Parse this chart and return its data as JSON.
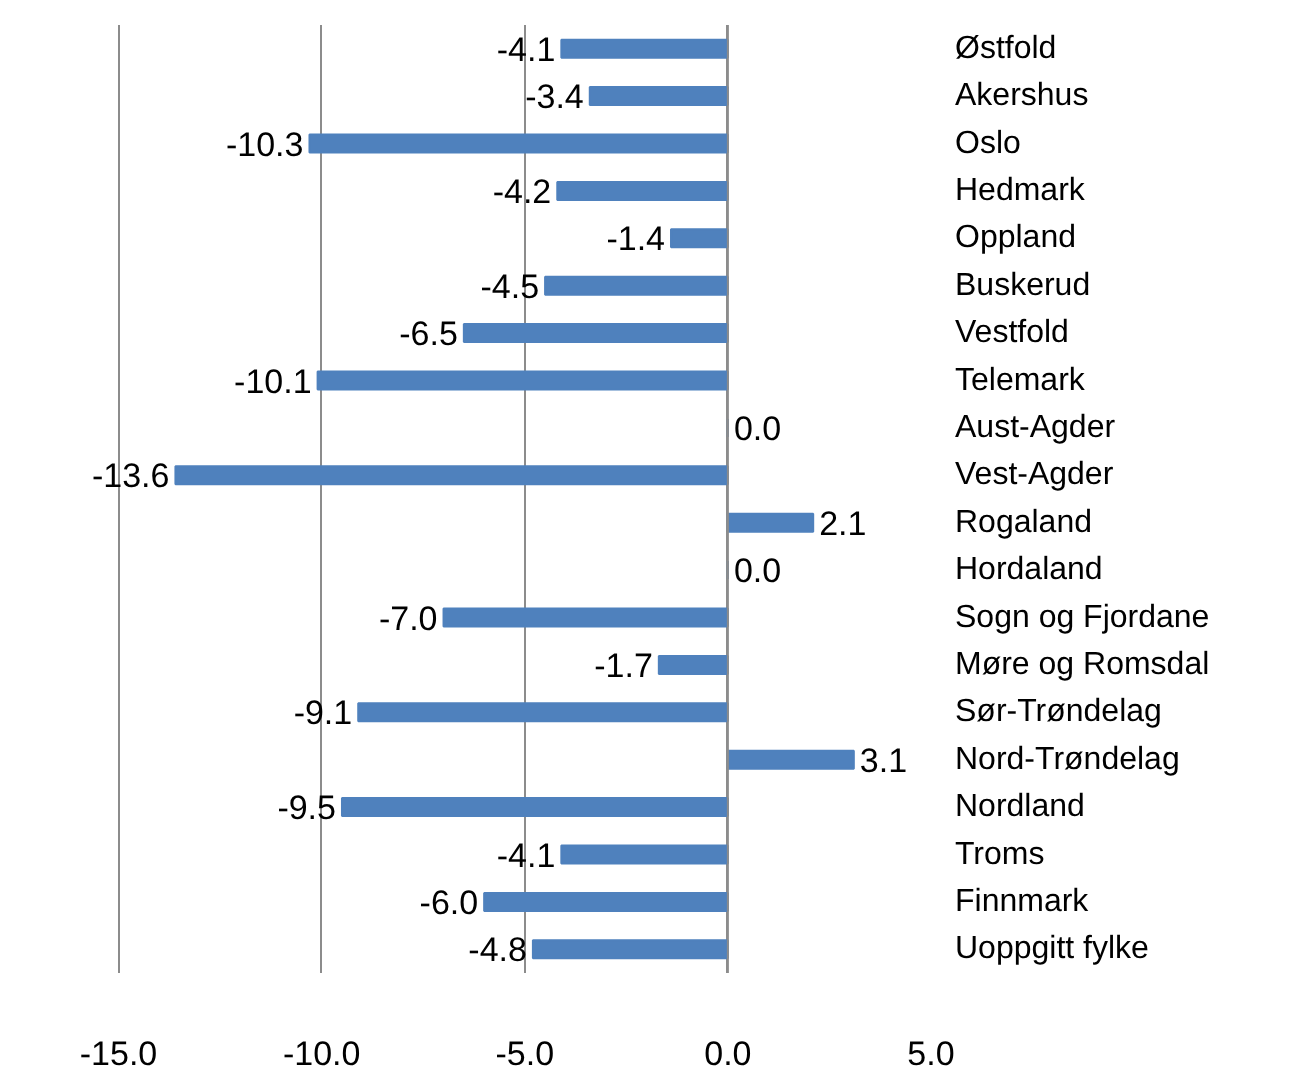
{
  "chart_data": {
    "type": "bar",
    "orientation": "horizontal",
    "categories": [
      "Østfold",
      "Akershus",
      "Oslo",
      "Hedmark",
      "Oppland",
      "Buskerud",
      "Vestfold",
      "Telemark",
      "Aust-Agder",
      "Vest-Agder",
      "Rogaland",
      "Hordaland",
      "Sogn og Fjordane",
      "Møre og Romsdal",
      "Sør-Trøndelag",
      "Nord-Trøndelag",
      "Nordland",
      "Troms",
      "Finnmark",
      "Uoppgitt fylke"
    ],
    "values": [
      -4.1,
      -3.4,
      -10.3,
      -4.2,
      -1.4,
      -4.5,
      -6.5,
      -10.1,
      0.0,
      -13.6,
      2.1,
      0.0,
      -7.0,
      -1.7,
      -9.1,
      3.1,
      -9.5,
      -4.1,
      -6.0,
      -4.8
    ],
    "value_labels": [
      "-4.1",
      "-3.4",
      "-10.3",
      "-4.2",
      "-1.4",
      "-4.5",
      "-6.5",
      "-10.1",
      "0.0",
      "-13.6",
      "2.1",
      "0.0",
      "-7.0",
      "-1.7",
      "-9.1",
      "3.1",
      "-9.5",
      "-4.1",
      "-6.0",
      "-4.8"
    ],
    "color": "#4f81bd",
    "xlim": [
      -15,
      5
    ],
    "xticks": [
      {
        "value": -15,
        "label": "-15.0"
      },
      {
        "value": -10,
        "label": "-10.0"
      },
      {
        "value": -5,
        "label": "-5.0"
      },
      {
        "value": 0,
        "label": "0.0"
      },
      {
        "value": 5,
        "label": "5.0"
      }
    ],
    "grid": "x"
  }
}
